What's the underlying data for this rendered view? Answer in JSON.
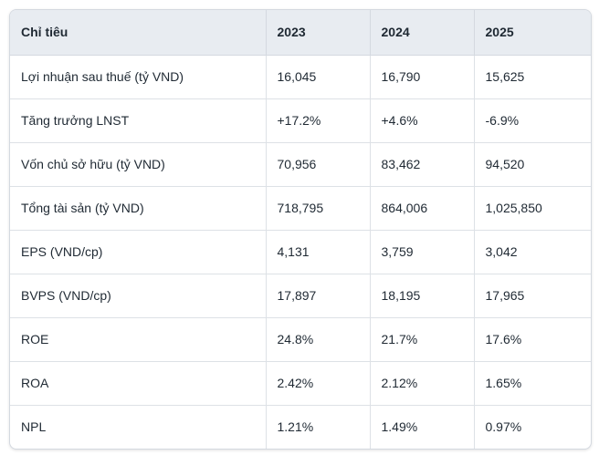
{
  "table": {
    "headers": [
      "Chỉ tiêu",
      "2023",
      "2024",
      "2025"
    ],
    "rows": [
      [
        "Lợi nhuận sau thuế (tỷ VND)",
        "16,045",
        "16,790",
        "15,625"
      ],
      [
        "Tăng trưởng LNST",
        "+17.2%",
        "+4.6%",
        "-6.9%"
      ],
      [
        "Vốn chủ sở hữu (tỷ VND)",
        "70,956",
        "83,462",
        "94,520"
      ],
      [
        "Tổng tài sản (tỷ VND)",
        "718,795",
        "864,006",
        "1,025,850"
      ],
      [
        "EPS (VND/cp)",
        "4,131",
        "3,759",
        "3,042"
      ],
      [
        "BVPS (VND/cp)",
        "17,897",
        "18,195",
        "17,965"
      ],
      [
        "ROE",
        "24.8%",
        "21.7%",
        "17.6%"
      ],
      [
        "ROA",
        "2.42%",
        "2.12%",
        "1.65%"
      ],
      [
        "NPL",
        "1.21%",
        "1.49%",
        "0.97%"
      ]
    ]
  }
}
